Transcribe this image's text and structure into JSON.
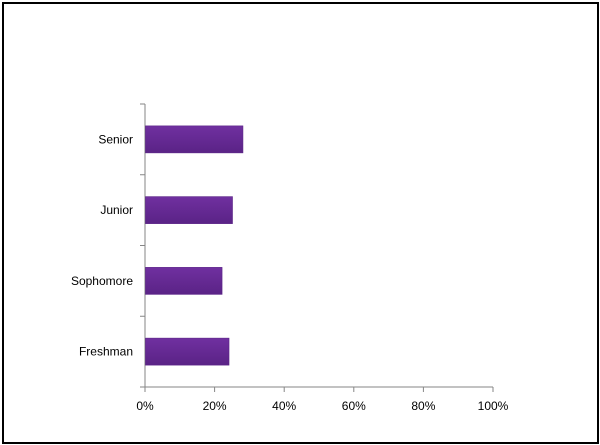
{
  "chart_data": {
    "type": "bar",
    "orientation": "horizontal",
    "title": "",
    "xlabel": "",
    "ylabel": "",
    "categories": [
      "Freshman",
      "Sophomore",
      "Junior",
      "Senior"
    ],
    "values": [
      24,
      22,
      25,
      28
    ],
    "value_unit": "percent",
    "xlim": [
      0,
      100
    ],
    "x_ticks": [
      0,
      20,
      40,
      60,
      80,
      100
    ],
    "x_tick_labels": [
      "0%",
      "20%",
      "40%",
      "60%",
      "80%",
      "100%"
    ],
    "grid": false,
    "legend": "none",
    "bar_color": "#7030A0",
    "bar_shade_color": "#5A2386"
  }
}
